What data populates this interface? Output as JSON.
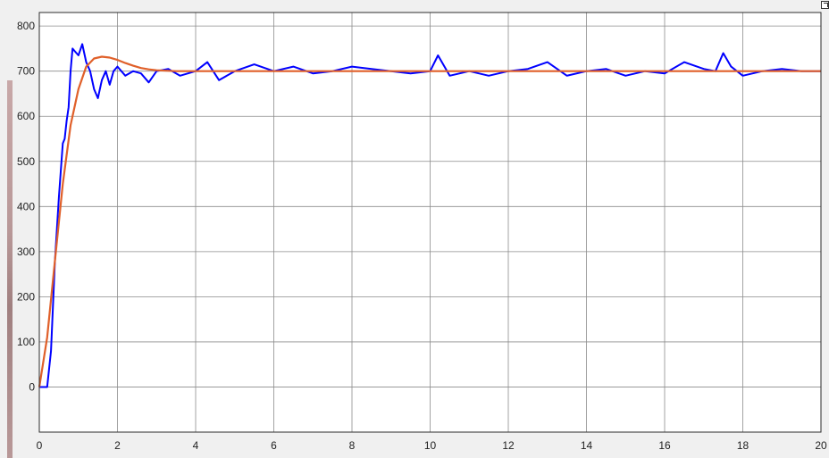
{
  "colors": {
    "background": "#f0f0f0",
    "plot_background": "#ffffff",
    "grid": "#8c8c8c",
    "axis_box": "#2b2b2b",
    "series_measured": "#0000ff",
    "series_model": "#e0602a"
  },
  "icons": {
    "corner": "expand-icon"
  },
  "chart_data": {
    "type": "line",
    "title": "",
    "xlabel": "",
    "ylabel": "",
    "xlim": [
      0,
      20
    ],
    "ylim": [
      -100,
      830
    ],
    "xticks": [
      0,
      2,
      4,
      6,
      8,
      10,
      12,
      14,
      16,
      18,
      20
    ],
    "yticks": [
      0,
      100,
      200,
      300,
      400,
      500,
      600,
      700,
      800
    ],
    "grid": true,
    "legend": "none",
    "series": [
      {
        "color": "#0000ff",
        "x": [
          0,
          0.2,
          0.3,
          0.4,
          0.5,
          0.6,
          0.65,
          0.7,
          0.75,
          0.8,
          0.85,
          0.9,
          1.0,
          1.1,
          1.2,
          1.3,
          1.4,
          1.5,
          1.6,
          1.7,
          1.8,
          1.9,
          2.0,
          2.2,
          2.4,
          2.6,
          2.8,
          3.0,
          3.3,
          3.6,
          4.0,
          4.3,
          4.6,
          5.0,
          5.5,
          6.0,
          6.5,
          7.0,
          7.5,
          8.0,
          8.5,
          9.0,
          9.5,
          10.0,
          10.2,
          10.5,
          11.0,
          11.5,
          12.0,
          12.5,
          13.0,
          13.5,
          14.0,
          14.5,
          15.0,
          15.5,
          16.0,
          16.5,
          17.0,
          17.3,
          17.5,
          17.7,
          18.0,
          18.5,
          19.0,
          19.5,
          20.0
        ],
        "y": [
          0,
          0,
          80,
          280,
          420,
          540,
          550,
          590,
          620,
          700,
          750,
          745,
          735,
          760,
          720,
          700,
          660,
          640,
          680,
          700,
          670,
          700,
          710,
          690,
          700,
          695,
          675,
          700,
          705,
          690,
          700,
          720,
          680,
          700,
          715,
          700,
          710,
          695,
          700,
          710,
          705,
          700,
          695,
          700,
          735,
          690,
          700,
          690,
          700,
          705,
          720,
          690,
          700,
          705,
          690,
          700,
          695,
          720,
          705,
          700,
          740,
          710,
          690,
          700,
          705,
          700,
          700
        ]
      },
      {
        "color": "#e0602a",
        "x": [
          0,
          0.2,
          0.4,
          0.6,
          0.8,
          1.0,
          1.2,
          1.4,
          1.6,
          1.8,
          2.0,
          2.2,
          2.4,
          2.6,
          2.8,
          3.0,
          3.5,
          4.0,
          5.0,
          6.0,
          8.0,
          10.0,
          12.0,
          14.0,
          16.0,
          18.0,
          20.0
        ],
        "y": [
          0,
          110,
          280,
          450,
          580,
          660,
          710,
          728,
          732,
          730,
          725,
          718,
          712,
          707,
          704,
          702,
          700,
          700,
          700,
          700,
          700,
          700,
          700,
          700,
          700,
          700,
          700
        ]
      }
    ]
  }
}
